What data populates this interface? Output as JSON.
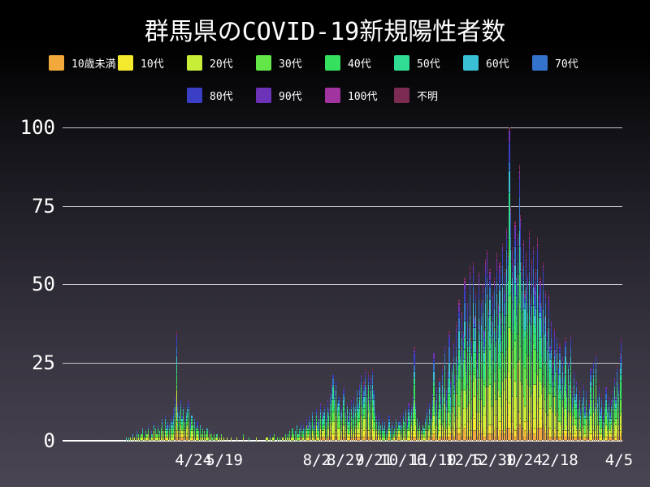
{
  "title": "群馬県のCOVID-19新規陽性者数",
  "age_groups": [
    {
      "label": "10歳未満",
      "color": "#f3a83b",
      "row": 1,
      "share": 0.05
    },
    {
      "label": "10代",
      "color": "#f5e92e",
      "row": 1,
      "share": 0.07
    },
    {
      "label": "20代",
      "color": "#c9ee37",
      "row": 1,
      "share": 0.18
    },
    {
      "label": "30代",
      "color": "#62e648",
      "row": 1,
      "share": 0.15
    },
    {
      "label": "40代",
      "color": "#35e05e",
      "row": 1,
      "share": 0.13
    },
    {
      "label": "50代",
      "color": "#30dc92",
      "row": 1,
      "share": 0.12
    },
    {
      "label": "60代",
      "color": "#39c0d4",
      "row": 1,
      "share": 0.09
    },
    {
      "label": "70代",
      "color": "#3473cc",
      "row": 1,
      "share": 0.08
    },
    {
      "label": "80代",
      "color": "#3a3fc6",
      "row": 2,
      "share": 0.06
    },
    {
      "label": "90代",
      "color": "#6c33b8",
      "row": 2,
      "share": 0.04
    },
    {
      "label": "100代",
      "color": "#a234a0",
      "row": 2,
      "share": 0.01
    },
    {
      "label": "不明",
      "color": "#7c2b52",
      "row": 2,
      "share": 0.02
    }
  ],
  "y_axis": {
    "max": 100,
    "ticks": [
      {
        "label": "100",
        "value": 100
      },
      {
        "label": "75",
        "value": 75
      },
      {
        "label": "50",
        "value": 50
      },
      {
        "label": "25",
        "value": 25
      },
      {
        "label": "0",
        "value": 0
      }
    ]
  },
  "x_axis": {
    "ticks": [
      {
        "label": "4/24",
        "pos_pct": 23.4
      },
      {
        "label": "5/19",
        "pos_pct": 28.9
      },
      {
        "label": "8/2",
        "pos_pct": 45.4
      },
      {
        "label": "8/27",
        "pos_pct": 50.5
      },
      {
        "label": "9/21",
        "pos_pct": 55.6
      },
      {
        "label": "10/16",
        "pos_pct": 60.8
      },
      {
        "label": "11/10",
        "pos_pct": 66.2
      },
      {
        "label": "12/5",
        "pos_pct": 71.7
      },
      {
        "label": "12/30",
        "pos_pct": 76.9
      },
      {
        "label": "1/24",
        "pos_pct": 82.4
      },
      {
        "label": "2/18",
        "pos_pct": 88.8
      },
      {
        "label": "4/5",
        "pos_pct": 99.4
      }
    ]
  },
  "chart_data": {
    "type": "bar",
    "stacked": true,
    "title": "群馬県のCOVID-19新規陽性者数",
    "ylabel": "",
    "ylim": [
      0,
      100
    ],
    "grid": "horizontal",
    "legend_position": "top",
    "groups": [
      "10歳未満",
      "10代",
      "20代",
      "30代",
      "40代",
      "50代",
      "60代",
      "70代",
      "80代",
      "90代",
      "100代",
      "不明"
    ],
    "x_tick_labels": [
      "4/24",
      "5/19",
      "8/2",
      "8/27",
      "9/21",
      "10/16",
      "11/10",
      "12/5",
      "12/30",
      "1/24",
      "2/18",
      "4/5"
    ],
    "daily_totals": [
      0,
      0,
      0,
      0,
      0,
      0,
      0,
      0,
      0,
      0,
      0,
      0,
      0,
      0,
      0,
      0,
      0,
      0,
      0,
      0,
      0,
      0,
      0,
      0,
      0,
      0,
      0,
      0,
      0,
      0,
      0,
      0,
      0,
      0,
      0,
      0,
      0,
      0,
      0,
      0,
      0,
      0,
      0,
      0,
      0,
      1,
      0,
      1,
      1,
      0,
      2,
      1,
      0,
      3,
      2,
      1,
      2,
      4,
      1,
      3,
      2,
      5,
      1,
      3,
      2,
      6,
      4,
      2,
      5,
      3,
      4,
      7,
      3,
      8,
      5,
      6,
      5,
      8,
      6,
      10,
      14,
      35,
      12,
      9,
      13,
      8,
      11,
      7,
      9,
      12,
      13,
      6,
      8,
      5,
      7,
      4,
      6,
      3,
      5,
      2,
      4,
      3,
      2,
      4,
      1,
      3,
      2,
      1,
      2,
      1,
      2,
      0,
      1,
      2,
      0,
      1,
      0,
      1,
      0,
      0,
      1,
      0,
      0,
      0,
      1,
      0,
      0,
      0,
      0,
      2,
      0,
      0,
      0,
      1,
      0,
      0,
      0,
      0,
      1,
      0,
      0,
      0,
      0,
      0,
      0,
      1,
      1,
      0,
      2,
      0,
      1,
      2,
      0,
      1,
      0,
      1,
      0,
      1,
      0,
      2,
      1,
      2,
      3,
      1,
      4,
      2,
      3,
      5,
      2,
      4,
      6,
      3,
      5,
      4,
      7,
      5,
      8,
      6,
      9,
      5,
      7,
      10,
      6,
      8,
      12,
      7,
      9,
      11,
      8,
      13,
      10,
      15,
      18,
      21,
      16,
      19,
      12,
      14,
      9,
      11,
      16,
      17,
      10,
      12,
      8,
      10,
      13,
      9,
      14,
      11,
      16,
      12,
      18,
      21,
      15,
      19,
      23,
      17,
      22,
      14,
      20,
      23,
      16,
      11,
      8,
      6,
      9,
      5,
      7,
      4,
      6,
      3,
      5,
      8,
      4,
      6,
      3,
      5,
      7,
      4,
      6,
      8,
      5,
      9,
      6,
      10,
      7,
      12,
      8,
      11,
      14,
      30,
      12,
      7,
      4,
      6,
      3,
      5,
      4,
      7,
      10,
      6,
      12,
      9,
      15,
      28,
      13,
      17,
      11,
      20,
      14,
      24,
      18,
      30,
      16,
      22,
      35,
      19,
      26,
      32,
      21,
      38,
      27,
      45,
      30,
      41,
      35,
      52,
      28,
      44,
      37,
      56,
      33,
      57,
      40,
      48,
      30,
      54,
      38,
      45,
      50,
      35,
      58,
      61,
      42,
      55,
      38,
      47,
      52,
      36,
      60,
      44,
      57,
      40,
      63,
      48,
      55,
      68,
      60,
      100,
      75,
      62,
      58,
      70,
      52,
      66,
      88,
      72,
      57,
      64,
      48,
      60,
      53,
      67,
      45,
      58,
      62,
      50,
      55,
      65,
      47,
      52,
      44,
      57,
      40,
      48,
      36,
      47,
      30,
      38,
      26,
      36,
      29,
      33,
      24,
      31,
      20,
      27,
      23,
      33,
      18,
      25,
      21,
      34,
      17,
      22,
      15,
      19,
      12,
      17,
      10,
      14,
      18,
      11,
      16,
      9,
      13,
      23,
      15,
      25,
      12,
      28,
      14,
      18,
      10,
      15,
      8,
      12,
      17,
      11,
      14,
      9,
      13,
      16,
      20,
      14,
      24,
      18,
      28,
      33
    ]
  }
}
